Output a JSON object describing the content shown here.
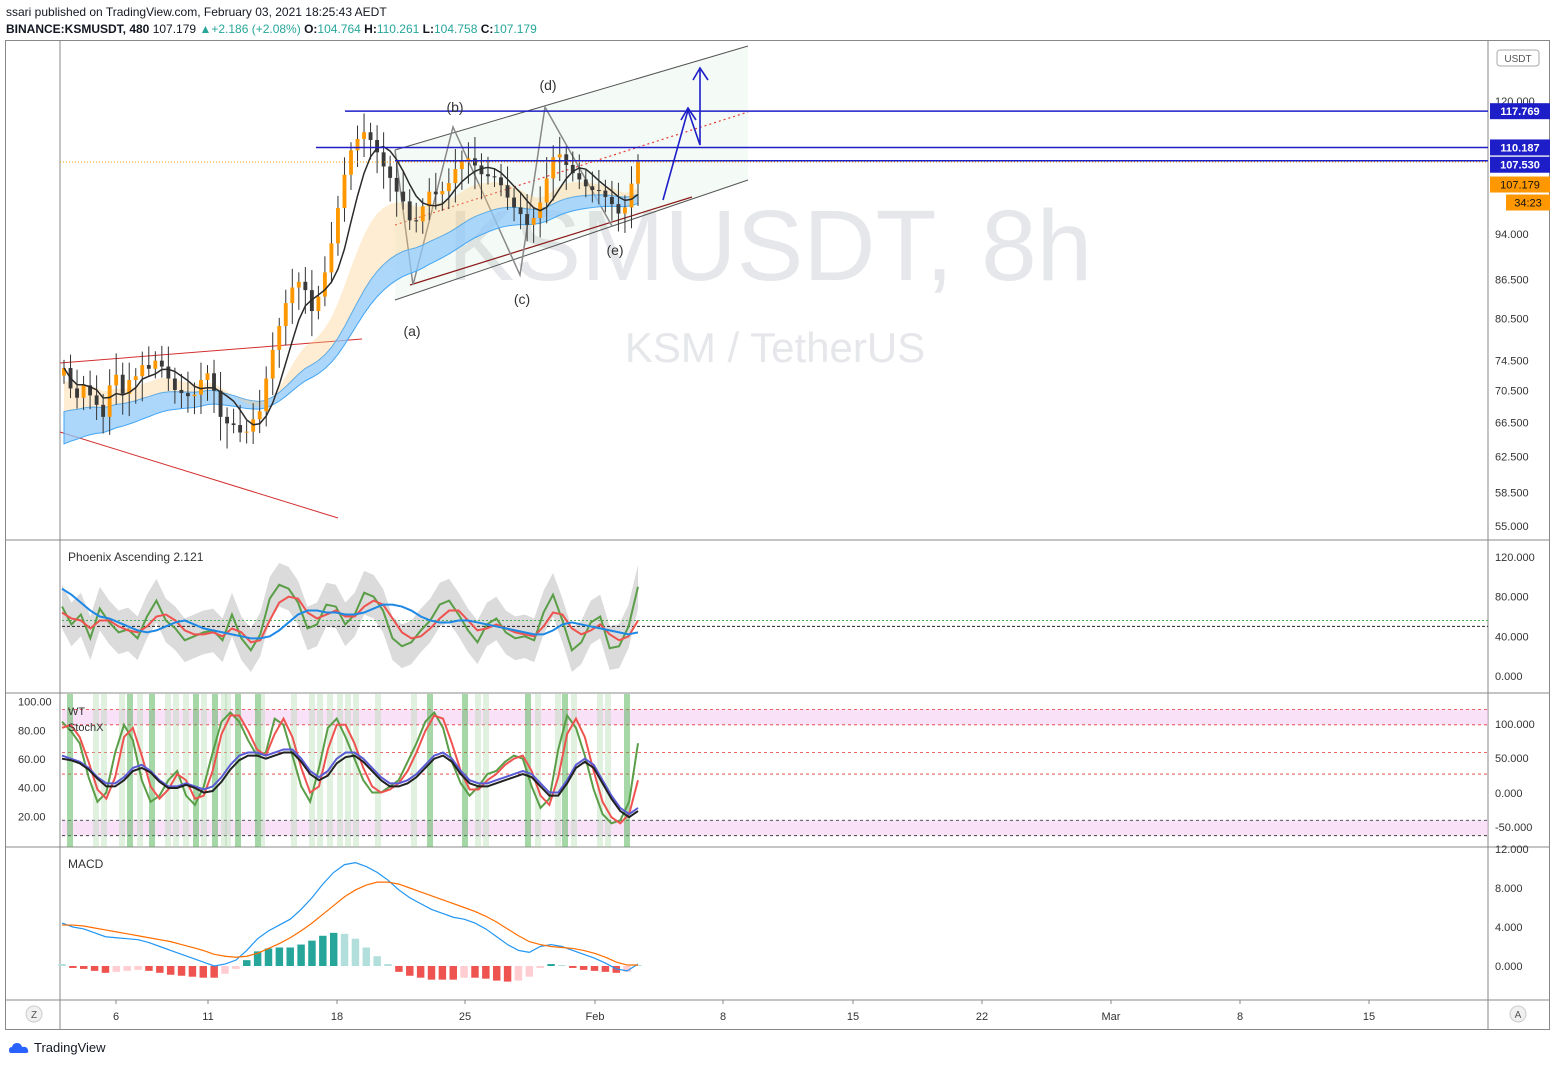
{
  "header": {
    "published": "ssari published on TradingView.com, February 03, 2021 18:25:43 AEDT",
    "symbol": "BINANCE:KSMUSDT, 480",
    "last": "107.179",
    "change": "+2.186 (+2.08%)",
    "o_label": "O:",
    "o": "104.764",
    "h_label": "H:",
    "h": "110.261",
    "l_label": "L:",
    "l": "104.758",
    "c_label": "C:",
    "c": "107.179"
  },
  "watermark": {
    "main": "KSMUSDT, 8h",
    "sub": "KSM / TetherUS"
  },
  "currency_badge": "USDT",
  "wave_labels": [
    "(a)",
    "(b)",
    "(c)",
    "(d)",
    "(e)"
  ],
  "price_badges": [
    {
      "text": "117.769",
      "color": "#1e1ec8"
    },
    {
      "text": "110.187",
      "color": "#1e1ec8"
    },
    {
      "text": "107.530",
      "color": "#1e1ec8"
    },
    {
      "text": "107.179",
      "color": "#ff9800"
    },
    {
      "text": "34:23",
      "color": "#ff9800"
    }
  ],
  "indicators": {
    "phoenix": "Phoenix Ascending 2.121",
    "wt": "WT",
    "stochx": "StochX",
    "macd": "MACD"
  },
  "footer": {
    "brand": "TradingView",
    "z": "Z",
    "a": "A"
  },
  "colors": {
    "bull": "#ff9800",
    "bear": "#3a3a3a",
    "blue_line": "#1e1ec8",
    "ema_band": "#90caf9",
    "macd_up": "#26a69a",
    "macd_down": "#ef5350"
  },
  "chart_data": [
    {
      "type": "candlestick",
      "title": "KSMUSDT, 8h",
      "ylim": [
        55.0,
        128.0
      ],
      "ylabel": "USDT",
      "ytick_labels": [
        "120.000",
        "94.000",
        "86.500",
        "80.500",
        "74.500",
        "70.500",
        "66.500",
        "62.500",
        "58.500",
        "55.000"
      ],
      "yticks": [
        120.0,
        94.0,
        86.5,
        80.5,
        74.5,
        70.5,
        66.5,
        62.5,
        58.5,
        55.0
      ],
      "xtick_labels": [
        "6",
        "11",
        "18",
        "25",
        "Feb",
        "8",
        "15",
        "22",
        "Mar",
        "8",
        "15"
      ],
      "close_series": [
        73.5,
        70.8,
        69.6,
        71.2,
        69.9,
        68.7,
        67.2,
        71.2,
        72.6,
        70.1,
        71.9,
        72.4,
        73.9,
        73.4,
        74.5,
        73.7,
        72.1,
        70.6,
        70.2,
        69.8,
        70.0,
        71.9,
        72.8,
        70.5,
        67.2,
        66.4,
        66.2,
        65.3,
        65.4,
        66.9,
        67.9,
        72.1,
        76.0,
        79.4,
        82.8,
        85.2,
        86.1,
        84.8,
        81.6,
        83.8,
        87.6,
        92.4,
        98.6,
        104.8,
        109.6,
        111.9,
        113.3,
        111.7,
        109.2,
        106.4,
        104.2,
        101.6,
        99.8,
        96.4,
        96.2,
        98.9,
        101.6,
        101.1,
        101.7,
        103.2,
        105.9,
        107.4,
        108.0,
        106.6,
        104.9,
        104.5,
        104.3,
        102.8,
        100.5,
        98.7,
        97.5,
        95.6,
        96.8,
        99.6,
        104.1,
        108.2,
        108.8,
        106.7,
        105.1,
        103.9,
        102.6,
        101.9,
        101.8,
        100.6,
        99.3,
        97.6,
        98.7,
        103.1,
        107.2
      ],
      "horizontal_levels": [
        117.769,
        110.187,
        107.53
      ],
      "current_price": 107.179
    },
    {
      "type": "line",
      "title": "Phoenix Ascending 2.121",
      "ytick_labels": [
        "120.000",
        "80.000",
        "40.000",
        "0.000"
      ],
      "ylim": [
        0,
        120
      ],
      "series": [
        {
          "values": [
            70,
            52,
            62,
            38,
            68,
            54,
            44,
            47,
            38,
            60,
            76,
            56,
            48,
            36,
            40,
            44,
            46,
            36,
            62,
            38,
            26,
            42,
            78,
            92,
            88,
            74,
            48,
            52,
            72,
            70,
            52,
            62,
            84,
            80,
            66,
            38,
            30,
            34,
            46,
            56,
            72,
            76,
            62,
            46,
            34,
            52,
            58,
            44,
            38,
            40,
            36,
            64,
            82,
            56,
            26,
            34,
            54,
            60,
            28,
            30,
            50,
            90
          ],
          "color": "#5a9e48"
        },
        {
          "values": [
            64,
            58,
            56,
            48,
            56,
            56,
            50,
            46,
            44,
            50,
            60,
            62,
            56,
            46,
            42,
            42,
            44,
            40,
            48,
            44,
            34,
            36,
            56,
            74,
            80,
            78,
            64,
            58,
            62,
            66,
            60,
            60,
            70,
            76,
            72,
            58,
            44,
            38,
            40,
            48,
            58,
            66,
            66,
            56,
            46,
            48,
            52,
            48,
            44,
            42,
            40,
            50,
            64,
            62,
            48,
            42,
            46,
            52,
            42,
            36,
            40,
            56
          ],
          "color": "#ef5350"
        },
        {
          "values": [
            88,
            82,
            74,
            66,
            60,
            58,
            54,
            50,
            46,
            44,
            46,
            50,
            54,
            56,
            52,
            48,
            46,
            44,
            42,
            40,
            38,
            38,
            40,
            46,
            54,
            62,
            66,
            66,
            64,
            64,
            62,
            62,
            64,
            68,
            72,
            72,
            70,
            66,
            60,
            56,
            54,
            54,
            56,
            56,
            54,
            52,
            50,
            48,
            46,
            44,
            42,
            42,
            46,
            52,
            54,
            52,
            50,
            48,
            46,
            44,
            42,
            44
          ],
          "color": "#1e88e5"
        }
      ]
    },
    {
      "type": "line",
      "title": "WT / StochX",
      "ytick_labels_left": [
        "100.00",
        "80.00",
        "60.00",
        "40.00",
        "20.00"
      ],
      "ytick_labels_right": [
        "100.000",
        "50.000",
        "0.000",
        "-50.000"
      ],
      "series": [
        {
          "values": [
            82,
            76,
            68,
            46,
            30,
            36,
            62,
            80,
            70,
            44,
            30,
            34,
            44,
            50,
            34,
            28,
            40,
            62,
            82,
            88,
            82,
            70,
            60,
            62,
            84,
            80,
            60,
            40,
            30,
            52,
            78,
            84,
            72,
            58,
            44,
            36,
            36,
            40,
            44,
            56,
            68,
            82,
            88,
            78,
            56,
            42,
            34,
            40,
            48,
            50,
            56,
            60,
            58,
            40,
            26,
            32,
            64,
            86,
            78,
            60,
            38,
            22,
            16,
            18,
            30,
            68
          ],
          "color": "#5a9e48"
        },
        {
          "values": [
            78,
            80,
            72,
            56,
            38,
            32,
            46,
            72,
            78,
            60,
            40,
            32,
            38,
            48,
            44,
            32,
            34,
            50,
            74,
            86,
            86,
            76,
            64,
            60,
            74,
            84,
            72,
            52,
            36,
            40,
            64,
            80,
            80,
            68,
            52,
            40,
            36,
            38,
            42,
            50,
            62,
            76,
            86,
            84,
            68,
            50,
            38,
            38,
            44,
            48,
            54,
            58,
            60,
            50,
            34,
            28,
            46,
            74,
            84,
            72,
            50,
            30,
            20,
            16,
            22,
            44
          ],
          "color": "#ef5350"
        },
        {
          "values": [
            60,
            58,
            56,
            52,
            46,
            42,
            42,
            46,
            52,
            54,
            50,
            44,
            40,
            40,
            42,
            40,
            38,
            40,
            46,
            54,
            60,
            62,
            62,
            60,
            62,
            64,
            64,
            58,
            50,
            46,
            50,
            58,
            62,
            62,
            58,
            52,
            46,
            42,
            42,
            44,
            48,
            54,
            60,
            62,
            58,
            50,
            44,
            42,
            42,
            44,
            46,
            48,
            50,
            48,
            42,
            36,
            36,
            44,
            54,
            58,
            54,
            44,
            34,
            26,
            22,
            26
          ],
          "color": "#5b5bd6"
        },
        {
          "values": [
            58,
            57,
            55,
            51,
            45,
            40,
            40,
            44,
            50,
            52,
            49,
            43,
            39,
            39,
            41,
            39,
            36,
            37,
            43,
            51,
            57,
            60,
            60,
            58,
            60,
            62,
            62,
            56,
            48,
            44,
            47,
            55,
            59,
            60,
            56,
            50,
            44,
            40,
            40,
            42,
            46,
            52,
            58,
            60,
            56,
            48,
            42,
            40,
            40,
            42,
            44,
            46,
            48,
            46,
            40,
            34,
            34,
            42,
            52,
            56,
            52,
            42,
            32,
            24,
            20,
            24
          ],
          "color": "#222222"
        }
      ]
    },
    {
      "type": "bar",
      "title": "MACD",
      "ytick_labels": [
        "12.000",
        "8.000",
        "4.000",
        "0.000"
      ],
      "ylim": [
        -2.5,
        12.5
      ],
      "macd": [
        4.4,
        4.0,
        3.8,
        3.4,
        3.0,
        2.9,
        2.8,
        2.7,
        2.4,
        2.0,
        1.6,
        1.2,
        0.8,
        0.4,
        0.0,
        0.2,
        0.6,
        1.6,
        2.8,
        3.6,
        4.2,
        4.8,
        5.8,
        7.0,
        8.4,
        9.6,
        10.4,
        10.6,
        10.2,
        9.6,
        8.8,
        7.8,
        7.0,
        6.4,
        5.8,
        5.4,
        5.0,
        4.8,
        4.4,
        3.8,
        3.0,
        2.2,
        1.6,
        1.4,
        2.0,
        2.2,
        2.0,
        1.6,
        1.2,
        0.8,
        0.3,
        -0.3,
        -0.5,
        0.2
      ],
      "signal": [
        4.2,
        4.2,
        4.1,
        3.9,
        3.7,
        3.5,
        3.3,
        3.1,
        2.9,
        2.7,
        2.5,
        2.2,
        1.9,
        1.6,
        1.2,
        1.0,
        0.9,
        1.0,
        1.3,
        1.8,
        2.3,
        2.9,
        3.6,
        4.4,
        5.3,
        6.2,
        7.1,
        7.8,
        8.3,
        8.6,
        8.6,
        8.4,
        8.0,
        7.6,
        7.2,
        6.8,
        6.4,
        6.0,
        5.6,
        5.1,
        4.5,
        3.8,
        3.1,
        2.5,
        2.2,
        2.0,
        1.9,
        1.8,
        1.6,
        1.3,
        0.9,
        0.4,
        0.1,
        0.1
      ],
      "histogram": [
        0.2,
        -0.2,
        -0.3,
        -0.5,
        -0.7,
        -0.6,
        -0.5,
        -0.4,
        -0.5,
        -0.7,
        -0.9,
        -1.0,
        -1.1,
        -1.2,
        -1.2,
        -0.8,
        -0.3,
        0.6,
        1.5,
        1.8,
        1.9,
        1.9,
        2.2,
        2.6,
        3.1,
        3.4,
        3.3,
        2.8,
        1.9,
        1.0,
        0.2,
        -0.6,
        -1.0,
        -1.2,
        -1.4,
        -1.4,
        -1.4,
        -1.2,
        -1.2,
        -1.3,
        -1.5,
        -1.6,
        -1.5,
        -1.1,
        -0.2,
        0.2,
        0.1,
        -0.2,
        -0.4,
        -0.5,
        -0.6,
        -0.7,
        -0.6,
        0.1
      ]
    }
  ]
}
